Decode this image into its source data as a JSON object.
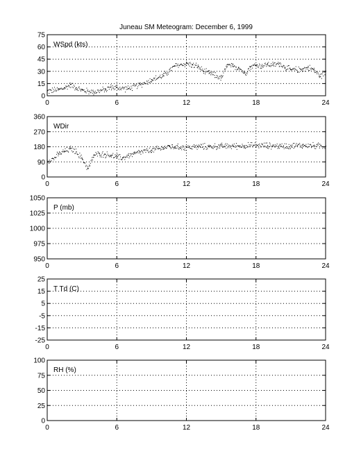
{
  "title": "Juneau SM Meteogram:  December  6, 1999",
  "chart_data": [
    {
      "type": "scatter",
      "ylabel": "WSpd (kts)",
      "xlim": [
        0,
        24
      ],
      "xticks": [
        0,
        6,
        12,
        18,
        24
      ],
      "ylim": [
        0,
        75
      ],
      "yticks": [
        0,
        15,
        30,
        45,
        60,
        75
      ],
      "grid": true,
      "series": [
        {
          "points": [
            [
              0.0,
              6
            ],
            [
              1.0,
              8
            ],
            [
              1.5,
              10
            ],
            [
              2.0,
              14
            ],
            [
              2.5,
              10
            ],
            [
              3.0,
              7
            ],
            [
              4.0,
              5
            ],
            [
              5.0,
              8
            ],
            [
              5.5,
              11
            ],
            [
              6.0,
              10
            ],
            [
              7.0,
              9
            ],
            [
              8.0,
              14
            ],
            [
              9.0,
              20
            ],
            [
              10.0,
              25
            ],
            [
              11.0,
              37
            ],
            [
              12.0,
              40
            ],
            [
              12.5,
              38
            ],
            [
              13.0,
              36
            ],
            [
              13.5,
              30
            ],
            [
              14.0,
              28
            ],
            [
              15.0,
              22
            ],
            [
              15.5,
              38
            ],
            [
              16.0,
              36
            ],
            [
              16.5,
              35
            ],
            [
              17.0,
              28
            ],
            [
              17.5,
              36
            ],
            [
              18.0,
              38
            ],
            [
              18.5,
              37
            ],
            [
              19.0,
              39
            ],
            [
              19.5,
              38
            ],
            [
              20.0,
              40
            ],
            [
              20.5,
              35
            ],
            [
              21.0,
              32
            ],
            [
              22.0,
              33
            ],
            [
              22.5,
              35
            ],
            [
              23.0,
              32
            ],
            [
              23.5,
              24
            ],
            [
              24.0,
              30
            ]
          ]
        }
      ]
    },
    {
      "type": "scatter",
      "ylabel": "WDir",
      "xlim": [
        0,
        24
      ],
      "xticks": [
        0,
        6,
        12,
        18,
        24
      ],
      "ylim": [
        0,
        360
      ],
      "yticks": [
        0,
        90,
        180,
        270,
        360
      ],
      "grid": true,
      "series": [
        {
          "points": [
            [
              0.0,
              100
            ],
            [
              0.5,
              110
            ],
            [
              1.0,
              140
            ],
            [
              1.5,
              155
            ],
            [
              2.0,
              170
            ],
            [
              2.5,
              150
            ],
            [
              3.0,
              110
            ],
            [
              3.5,
              50
            ],
            [
              4.0,
              130
            ],
            [
              4.5,
              140
            ],
            [
              5.0,
              135
            ],
            [
              5.5,
              130
            ],
            [
              6.0,
              120
            ],
            [
              6.5,
              115
            ],
            [
              7.0,
              130
            ],
            [
              7.5,
              140
            ],
            [
              8.0,
              150
            ],
            [
              9.0,
              160
            ],
            [
              10.0,
              175
            ],
            [
              10.5,
              185
            ],
            [
              11.0,
              180
            ],
            [
              12.0,
              178
            ],
            [
              13.0,
              182
            ],
            [
              14.0,
              183
            ],
            [
              15.0,
              185
            ],
            [
              16.0,
              186
            ],
            [
              17.0,
              188
            ],
            [
              18.0,
              190
            ],
            [
              19.0,
              188
            ],
            [
              20.0,
              186
            ],
            [
              21.0,
              188
            ],
            [
              22.0,
              190
            ],
            [
              23.0,
              188
            ],
            [
              24.0,
              185
            ]
          ]
        }
      ]
    },
    {
      "type": "scatter",
      "ylabel": "P (mb)",
      "xlim": [
        0,
        24
      ],
      "xticks": [
        0,
        6,
        12,
        18,
        24
      ],
      "ylim": [
        950,
        1050
      ],
      "yticks": [
        950,
        975,
        1000,
        1025,
        1050
      ],
      "grid": true,
      "series": []
    },
    {
      "type": "scatter",
      "ylabel": "T Td (C)",
      "xlim": [
        0,
        24
      ],
      "xticks": [
        0,
        6,
        12,
        18,
        24
      ],
      "ylim": [
        -25,
        25
      ],
      "yticks": [
        -25,
        -15,
        -5,
        5,
        15,
        25
      ],
      "grid": true,
      "series": []
    },
    {
      "type": "scatter",
      "ylabel": "RH (%)",
      "xlim": [
        0,
        24
      ],
      "xticks": [
        0,
        6,
        12,
        18,
        24
      ],
      "ylim": [
        0,
        100
      ],
      "yticks": [
        0,
        25,
        50,
        75,
        100
      ],
      "grid": true,
      "series": []
    }
  ]
}
